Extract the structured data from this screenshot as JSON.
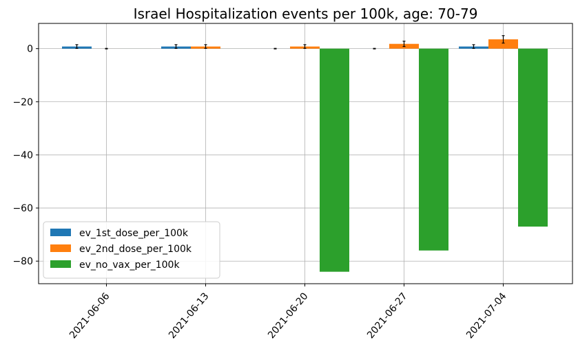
{
  "chart_data": {
    "type": "bar",
    "title": "Israel Hospitalization events per 100k, age: 70-79",
    "xlabel": "",
    "ylabel": "",
    "categories": [
      "2021-06-06",
      "2021-06-13",
      "2021-06-20",
      "2021-06-27",
      "2021-07-04"
    ],
    "ylim": [
      -88.5,
      9.5
    ],
    "yticks": [
      0,
      -20,
      -40,
      -60,
      -80
    ],
    "ytick_labels": [
      "0",
      "−20",
      "−40",
      "−60",
      "−80"
    ],
    "grid": true,
    "legend_position": "lower-left",
    "series": [
      {
        "name": "ev_1st_dose_per_100k",
        "color": "#1f77b4",
        "values": [
          0.8,
          0.8,
          0.0,
          0.0,
          0.8
        ],
        "errors": [
          0.7,
          0.7,
          0.1,
          0.1,
          0.7
        ]
      },
      {
        "name": "ev_2nd_dose_per_100k",
        "color": "#ff7f0e",
        "values": [
          0.0,
          0.8,
          0.8,
          1.8,
          3.5
        ],
        "errors": [
          0.1,
          0.7,
          0.7,
          1.0,
          1.4
        ]
      },
      {
        "name": "ev_no_vax_per_100k",
        "color": "#2ca02c",
        "values": [
          0.0,
          0.0,
          -84.0,
          -76.0,
          -67.0
        ],
        "errors": [
          0,
          0,
          0,
          0,
          0
        ]
      }
    ]
  }
}
